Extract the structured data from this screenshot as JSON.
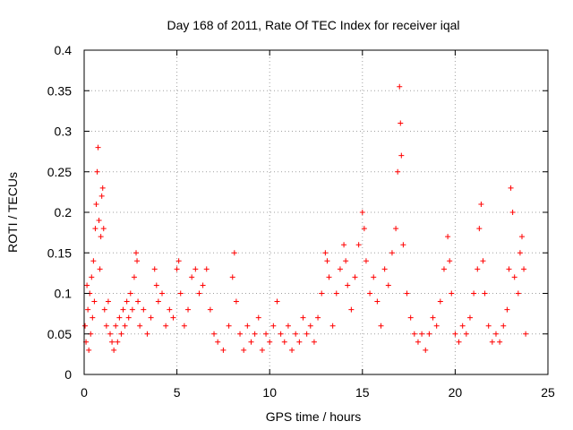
{
  "chart_data": {
    "type": "scatter",
    "title": "Day 168 of 2011, Rate Of TEC Index for receiver iqal",
    "xlabel": "GPS time / hours",
    "ylabel": "ROTI / TECUs",
    "xlim": [
      0,
      25
    ],
    "ylim": [
      0,
      0.4
    ],
    "xticks": [
      0,
      5,
      10,
      15,
      20,
      25
    ],
    "yticks": [
      0,
      0.05,
      0.1,
      0.15,
      0.2,
      0.25,
      0.3,
      0.35,
      0.4
    ],
    "xtick_labels": [
      "0",
      "5",
      "10",
      "15",
      "20",
      "25"
    ],
    "ytick_labels": [
      "0",
      "0.05",
      "0.1",
      "0.15",
      "0.2",
      "0.25",
      "0.3",
      "0.35",
      "0.4"
    ],
    "grid": true,
    "marker": "+",
    "color": "#ff0000",
    "series": [
      {
        "name": "ROTI",
        "points": [
          [
            0.05,
            0.06
          ],
          [
            0.1,
            0.04
          ],
          [
            0.15,
            0.11
          ],
          [
            0.2,
            0.08
          ],
          [
            0.25,
            0.03
          ],
          [
            0.3,
            0.1
          ],
          [
            0.35,
            0.05
          ],
          [
            0.4,
            0.12
          ],
          [
            0.45,
            0.07
          ],
          [
            0.5,
            0.14
          ],
          [
            0.55,
            0.09
          ],
          [
            0.6,
            0.18
          ],
          [
            0.65,
            0.21
          ],
          [
            0.7,
            0.25
          ],
          [
            0.75,
            0.28
          ],
          [
            0.8,
            0.19
          ],
          [
            0.85,
            0.13
          ],
          [
            0.9,
            0.17
          ],
          [
            0.95,
            0.22
          ],
          [
            1.0,
            0.23
          ],
          [
            1.05,
            0.18
          ],
          [
            1.1,
            0.08
          ],
          [
            1.2,
            0.06
          ],
          [
            1.3,
            0.09
          ],
          [
            1.4,
            0.05
          ],
          [
            1.5,
            0.04
          ],
          [
            1.6,
            0.03
          ],
          [
            1.7,
            0.06
          ],
          [
            1.8,
            0.04
          ],
          [
            1.9,
            0.07
          ],
          [
            2.0,
            0.05
          ],
          [
            2.1,
            0.08
          ],
          [
            2.2,
            0.06
          ],
          [
            2.3,
            0.09
          ],
          [
            2.4,
            0.07
          ],
          [
            2.5,
            0.1
          ],
          [
            2.6,
            0.08
          ],
          [
            2.7,
            0.12
          ],
          [
            2.8,
            0.15
          ],
          [
            2.85,
            0.14
          ],
          [
            2.9,
            0.09
          ],
          [
            3.0,
            0.06
          ],
          [
            3.2,
            0.08
          ],
          [
            3.4,
            0.05
          ],
          [
            3.6,
            0.07
          ],
          [
            3.8,
            0.13
          ],
          [
            3.9,
            0.11
          ],
          [
            4.0,
            0.09
          ],
          [
            4.2,
            0.1
          ],
          [
            4.4,
            0.06
          ],
          [
            4.6,
            0.08
          ],
          [
            4.8,
            0.07
          ],
          [
            5.0,
            0.13
          ],
          [
            5.1,
            0.14
          ],
          [
            5.2,
            0.1
          ],
          [
            5.4,
            0.06
          ],
          [
            5.6,
            0.08
          ],
          [
            5.8,
            0.12
          ],
          [
            6.0,
            0.13
          ],
          [
            6.2,
            0.1
          ],
          [
            6.4,
            0.11
          ],
          [
            6.6,
            0.13
          ],
          [
            6.8,
            0.08
          ],
          [
            7.0,
            0.05
          ],
          [
            7.2,
            0.04
          ],
          [
            7.5,
            0.03
          ],
          [
            7.8,
            0.06
          ],
          [
            8.0,
            0.12
          ],
          [
            8.1,
            0.15
          ],
          [
            8.2,
            0.09
          ],
          [
            8.4,
            0.05
          ],
          [
            8.6,
            0.03
          ],
          [
            8.8,
            0.06
          ],
          [
            9.0,
            0.04
          ],
          [
            9.2,
            0.05
          ],
          [
            9.4,
            0.07
          ],
          [
            9.6,
            0.03
          ],
          [
            9.8,
            0.05
          ],
          [
            10.0,
            0.04
          ],
          [
            10.2,
            0.06
          ],
          [
            10.4,
            0.09
          ],
          [
            10.6,
            0.05
          ],
          [
            10.8,
            0.04
          ],
          [
            11.0,
            0.06
          ],
          [
            11.2,
            0.03
          ],
          [
            11.4,
            0.05
          ],
          [
            11.6,
            0.04
          ],
          [
            11.8,
            0.07
          ],
          [
            12.0,
            0.05
          ],
          [
            12.2,
            0.06
          ],
          [
            12.4,
            0.04
          ],
          [
            12.6,
            0.07
          ],
          [
            12.8,
            0.1
          ],
          [
            13.0,
            0.15
          ],
          [
            13.1,
            0.14
          ],
          [
            13.2,
            0.12
          ],
          [
            13.4,
            0.06
          ],
          [
            13.6,
            0.1
          ],
          [
            13.8,
            0.13
          ],
          [
            14.0,
            0.16
          ],
          [
            14.1,
            0.14
          ],
          [
            14.2,
            0.11
          ],
          [
            14.4,
            0.08
          ],
          [
            14.6,
            0.12
          ],
          [
            14.8,
            0.16
          ],
          [
            15.0,
            0.2
          ],
          [
            15.1,
            0.18
          ],
          [
            15.2,
            0.14
          ],
          [
            15.4,
            0.1
          ],
          [
            15.6,
            0.12
          ],
          [
            15.8,
            0.09
          ],
          [
            16.0,
            0.06
          ],
          [
            16.2,
            0.13
          ],
          [
            16.4,
            0.11
          ],
          [
            16.6,
            0.15
          ],
          [
            16.8,
            0.18
          ],
          [
            16.9,
            0.25
          ],
          [
            17.0,
            0.355
          ],
          [
            17.05,
            0.31
          ],
          [
            17.1,
            0.27
          ],
          [
            17.2,
            0.16
          ],
          [
            17.4,
            0.1
          ],
          [
            17.6,
            0.07
          ],
          [
            17.8,
            0.05
          ],
          [
            18.0,
            0.04
          ],
          [
            18.2,
            0.05
          ],
          [
            18.4,
            0.03
          ],
          [
            18.6,
            0.05
          ],
          [
            18.8,
            0.07
          ],
          [
            19.0,
            0.06
          ],
          [
            19.2,
            0.09
          ],
          [
            19.4,
            0.13
          ],
          [
            19.6,
            0.17
          ],
          [
            19.7,
            0.14
          ],
          [
            19.8,
            0.1
          ],
          [
            20.0,
            0.05
          ],
          [
            20.2,
            0.04
          ],
          [
            20.4,
            0.06
          ],
          [
            20.6,
            0.05
          ],
          [
            20.8,
            0.07
          ],
          [
            21.0,
            0.1
          ],
          [
            21.2,
            0.13
          ],
          [
            21.3,
            0.18
          ],
          [
            21.4,
            0.21
          ],
          [
            21.5,
            0.14
          ],
          [
            21.6,
            0.1
          ],
          [
            21.8,
            0.06
          ],
          [
            22.0,
            0.04
          ],
          [
            22.2,
            0.05
          ],
          [
            22.4,
            0.04
          ],
          [
            22.6,
            0.06
          ],
          [
            22.8,
            0.08
          ],
          [
            22.9,
            0.13
          ],
          [
            23.0,
            0.23
          ],
          [
            23.1,
            0.2
          ],
          [
            23.2,
            0.12
          ],
          [
            23.4,
            0.1
          ],
          [
            23.5,
            0.15
          ],
          [
            23.6,
            0.17
          ],
          [
            23.7,
            0.13
          ],
          [
            23.8,
            0.05
          ]
        ]
      }
    ]
  }
}
